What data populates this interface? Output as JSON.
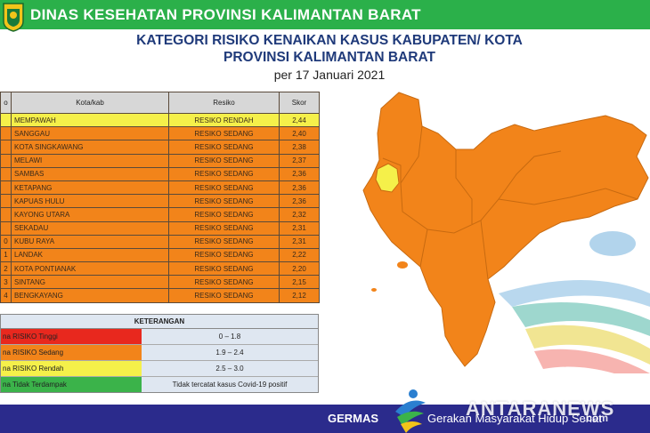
{
  "header": {
    "org": "DINAS KESEHATAN PROVINSI KALIMANTAN BARAT"
  },
  "title": {
    "line1": "KATEGORI RISIKO KENAIKAN KASUS KABUPATEN/ KOTA",
    "line2": "PROVINSI KALIMANTAN BARAT",
    "line3": "per 17 Januari 2021"
  },
  "table": {
    "headers": [
      "o",
      "Kota/kab",
      "Resiko",
      "Skor"
    ],
    "rows": [
      {
        "no": "",
        "name": "MEMPAWAH",
        "risk": "RESIKO RENDAH",
        "score": "2,44"
      },
      {
        "no": "",
        "name": "SANGGAU",
        "risk": "RESIKO SEDANG",
        "score": "2,40"
      },
      {
        "no": "",
        "name": "KOTA SINGKAWANG",
        "risk": "RESIKO SEDANG",
        "score": "2,38"
      },
      {
        "no": "",
        "name": "MELAWI",
        "risk": "RESIKO SEDANG",
        "score": "2,37"
      },
      {
        "no": "",
        "name": "SAMBAS",
        "risk": "RESIKO SEDANG",
        "score": "2,36"
      },
      {
        "no": "",
        "name": "KETAPANG",
        "risk": "RESIKO SEDANG",
        "score": "2,36"
      },
      {
        "no": "",
        "name": "KAPUAS HULU",
        "risk": "RESIKO SEDANG",
        "score": "2,36"
      },
      {
        "no": "",
        "name": "KAYONG UTARA",
        "risk": "RESIKO SEDANG",
        "score": "2,32"
      },
      {
        "no": "",
        "name": "SEKADAU",
        "risk": "RESIKO SEDANG",
        "score": "2,31"
      },
      {
        "no": "0",
        "name": "KUBU RAYA",
        "risk": "RESIKO SEDANG",
        "score": "2,31"
      },
      {
        "no": "1",
        "name": "LANDAK",
        "risk": "RESIKO SEDANG",
        "score": "2,22"
      },
      {
        "no": "2",
        "name": "KOTA PONTIANAK",
        "risk": "RESIKO SEDANG",
        "score": "2,20"
      },
      {
        "no": "3",
        "name": "SINTANG",
        "risk": "RESIKO SEDANG",
        "score": "2,15"
      },
      {
        "no": "4",
        "name": "BENGKAYANG",
        "risk": "RESIKO SEDANG",
        "score": "2,12"
      }
    ]
  },
  "legend": {
    "title": "KETERANGAN",
    "rows": [
      {
        "label": "na RISIKO Tinggi",
        "range": "0 – 1.8",
        "color": "#e8281e"
      },
      {
        "label": "na RISIKO Sedang",
        "range": "1.9 – 2.4",
        "color": "#f2841a"
      },
      {
        "label": "na RISIKO Rendah",
        "range": "2.5 – 3.0",
        "color": "#f5f04a"
      },
      {
        "label": "na Tidak Terdampak",
        "range": "Tidak tercatat kasus Covid-19 positif",
        "color": "#3bb34a"
      }
    ]
  },
  "footer": {
    "germas": "GERMAS",
    "slogan": "Gerakan Masyarakat Hidup Sehat"
  },
  "watermark": {
    "text": "ANTARANEWS",
    "suffix": ".com"
  },
  "colors": {
    "green": "#2bb04a",
    "navy": "#2b2b8c",
    "orange": "#f2841a",
    "yellow": "#f5f04a",
    "red": "#e8281e"
  }
}
